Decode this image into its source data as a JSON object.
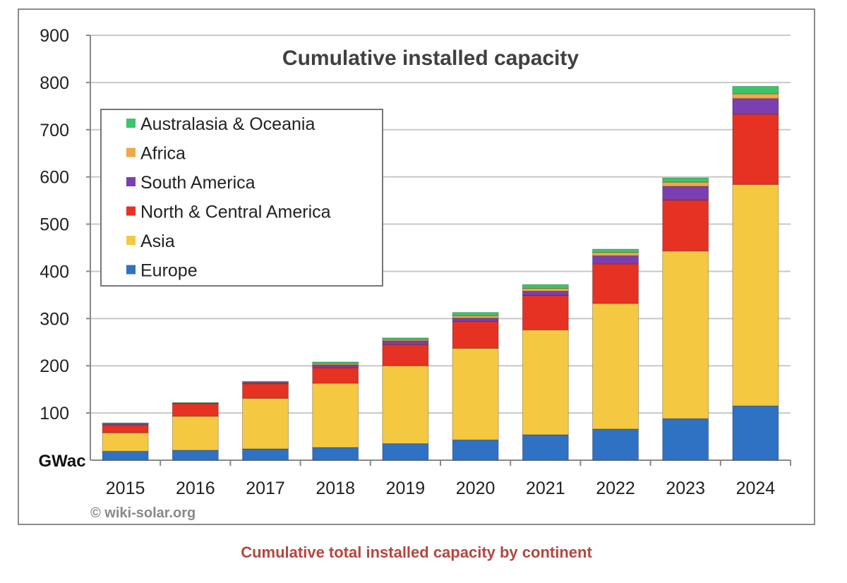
{
  "chart_data": {
    "type": "bar",
    "stacked": true,
    "title": "Cumulative installed capacity",
    "ylabel": "GWac",
    "xlabel": "",
    "ylim": [
      0,
      900
    ],
    "yticks": [
      100,
      200,
      300,
      400,
      500,
      600,
      700,
      800,
      900
    ],
    "grid": true,
    "legend_position": "top-left",
    "categories": [
      "2015",
      "2016",
      "2017",
      "2018",
      "2019",
      "2020",
      "2021",
      "2022",
      "2023",
      "2024"
    ],
    "series": [
      {
        "name": "Europe",
        "color": "#2f72c4",
        "values": [
          19,
          21,
          24,
          27,
          35,
          43,
          54,
          66,
          88,
          115
        ]
      },
      {
        "name": "Asia",
        "color": "#f5c842",
        "values": [
          39,
          72,
          107,
          136,
          165,
          194,
          222,
          266,
          355,
          469
        ]
      },
      {
        "name": "North & Central America",
        "color": "#e53222",
        "values": [
          17,
          27,
          31,
          33,
          45,
          57,
          73,
          84,
          108,
          149
        ]
      },
      {
        "name": "South America",
        "color": "#7a3fb0",
        "values": [
          2,
          1,
          3,
          6,
          8,
          7,
          9,
          17,
          29,
          33
        ]
      },
      {
        "name": "Africa",
        "color": "#f0a848",
        "values": [
          1,
          0.5,
          1,
          3,
          3,
          5,
          6,
          7,
          9,
          10
        ]
      },
      {
        "name": "Australasia & Oceania",
        "color": "#3cc46a",
        "values": [
          1,
          0.5,
          1,
          3,
          3,
          7,
          8,
          7,
          9,
          16
        ]
      }
    ],
    "legend_order": [
      "Australasia & Oceania",
      "Africa",
      "South America",
      "North & Central America",
      "Asia",
      "Europe"
    ],
    "watermark": "© wiki-solar.org"
  },
  "caption": "Cumulative total installed capacity by continent"
}
